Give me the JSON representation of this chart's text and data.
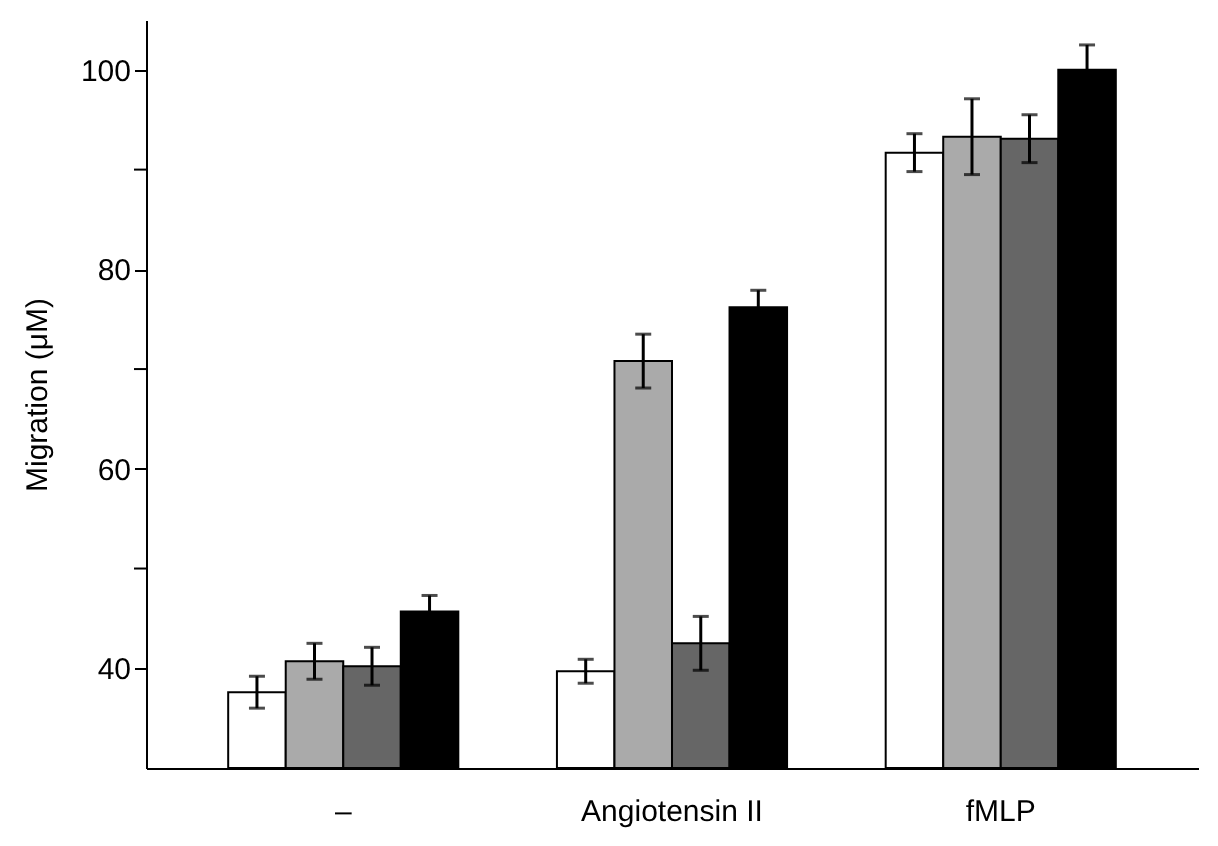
{
  "chart_data": {
    "type": "bar",
    "ylabel": "Migration (μM)",
    "categories": [
      "–",
      "Angiotensin II",
      "fMLP"
    ],
    "series": [
      {
        "color": "#ffffff",
        "values": [
          37.6,
          39.7,
          91.7
        ],
        "errors": [
          1.6,
          1.2,
          1.9
        ]
      },
      {
        "color": "#aaaaaa",
        "values": [
          40.7,
          70.8,
          93.3
        ],
        "errors": [
          1.8,
          2.7,
          3.8
        ]
      },
      {
        "color": "#666666",
        "values": [
          40.2,
          42.5,
          93.1
        ],
        "errors": [
          1.9,
          2.7,
          2.4
        ]
      },
      {
        "color": "#000000",
        "values": [
          45.7,
          76.2,
          100
        ],
        "errors": [
          1.6,
          1.7,
          2.5
        ]
      }
    ],
    "ylim": [
      30,
      105
    ],
    "yticks": [
      40,
      {
        "value": 50,
        "label": null
      },
      60,
      {
        "value": 70,
        "label": null
      },
      80,
      {
        "value": 90,
        "label": null
      },
      100
    ],
    "grid": false,
    "legend": false
  }
}
